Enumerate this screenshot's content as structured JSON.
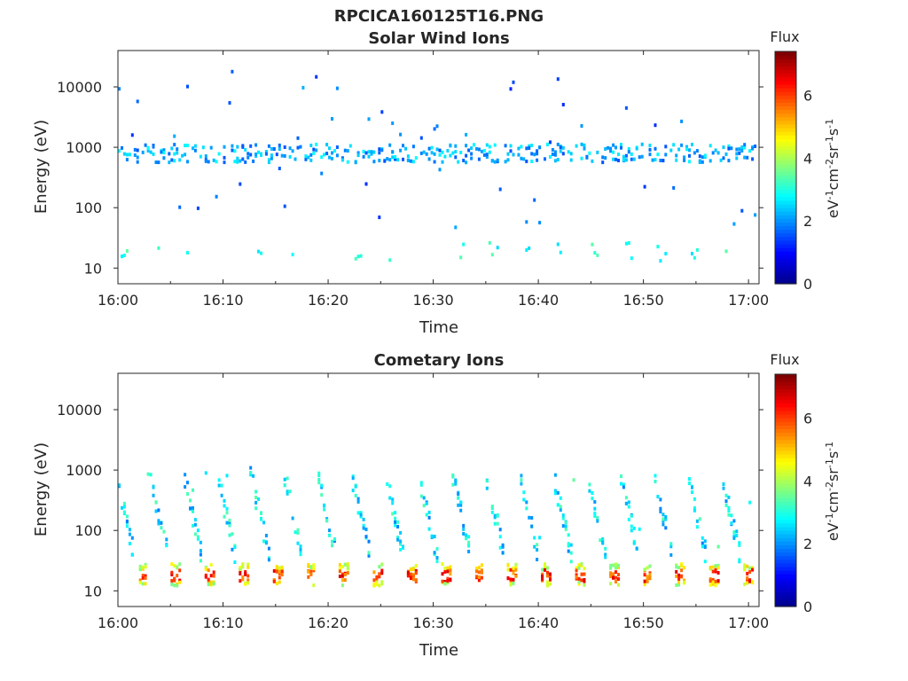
{
  "figure": {
    "filename": "RPCICA160125T16.PNG"
  },
  "colors": {
    "colormap": [
      "#00008f",
      "#0000ff",
      "#0080ff",
      "#00ffff",
      "#80ff80",
      "#ffff00",
      "#ff8000",
      "#ff0000",
      "#800000"
    ],
    "axis": "#262626"
  },
  "chart_data": [
    {
      "type": "heatmap",
      "title": "Solar Wind Ions",
      "xlabel": "Time",
      "ylabel": "Energy (eV)",
      "x_ticks": [
        "16:00",
        "16:10",
        "16:20",
        "16:30",
        "16:40",
        "16:50",
        "17:00"
      ],
      "x_range_minutes": [
        0,
        61
      ],
      "y_scale": "log",
      "y_ticks": [
        10,
        100,
        1000,
        10000
      ],
      "y_range": [
        5.5,
        40000
      ],
      "colorbar": {
        "title": "Flux",
        "unit": "eV-1cm-2sr-1s-1",
        "range": [
          0,
          7.4
        ],
        "ticks": [
          0,
          2,
          4,
          6
        ]
      },
      "features": [
        {
          "name": "main band",
          "energy_eV": [
            600,
            1200
          ],
          "flux": [
            1.5,
            2.8
          ],
          "density": 0.5
        },
        {
          "name": "low band",
          "energy_eV": [
            14,
            30
          ],
          "flux": [
            2.5,
            3.5
          ],
          "density": 0.2
        },
        {
          "name": "scatter",
          "energy_eV": [
            50,
            20000
          ],
          "flux": [
            1.2,
            2.2
          ],
          "density": 0.04
        }
      ]
    },
    {
      "type": "heatmap",
      "title": "Cometary Ions",
      "xlabel": "Time",
      "ylabel": "Energy (eV)",
      "x_ticks": [
        "16:00",
        "16:10",
        "16:20",
        "16:30",
        "16:40",
        "16:50",
        "17:00"
      ],
      "x_range_minutes": [
        0,
        61
      ],
      "y_scale": "log",
      "y_ticks": [
        10,
        100,
        1000,
        10000
      ],
      "y_range": [
        5.5,
        40000
      ],
      "colorbar": {
        "title": "Flux",
        "unit": "eV-1cm-2sr-1s-1",
        "range": [
          0,
          7.4
        ],
        "ticks": [
          0,
          2,
          4,
          6
        ]
      },
      "features": [
        {
          "name": "periodic dispersive streaks",
          "period_minutes": 3.2,
          "energy_eV": [
            40,
            900
          ],
          "flux": [
            1.5,
            3.5
          ]
        },
        {
          "name": "low energy bursts",
          "period_minutes": 3.2,
          "energy_eV": [
            13,
            30
          ],
          "flux": [
            4.0,
            6.8
          ]
        }
      ]
    }
  ]
}
